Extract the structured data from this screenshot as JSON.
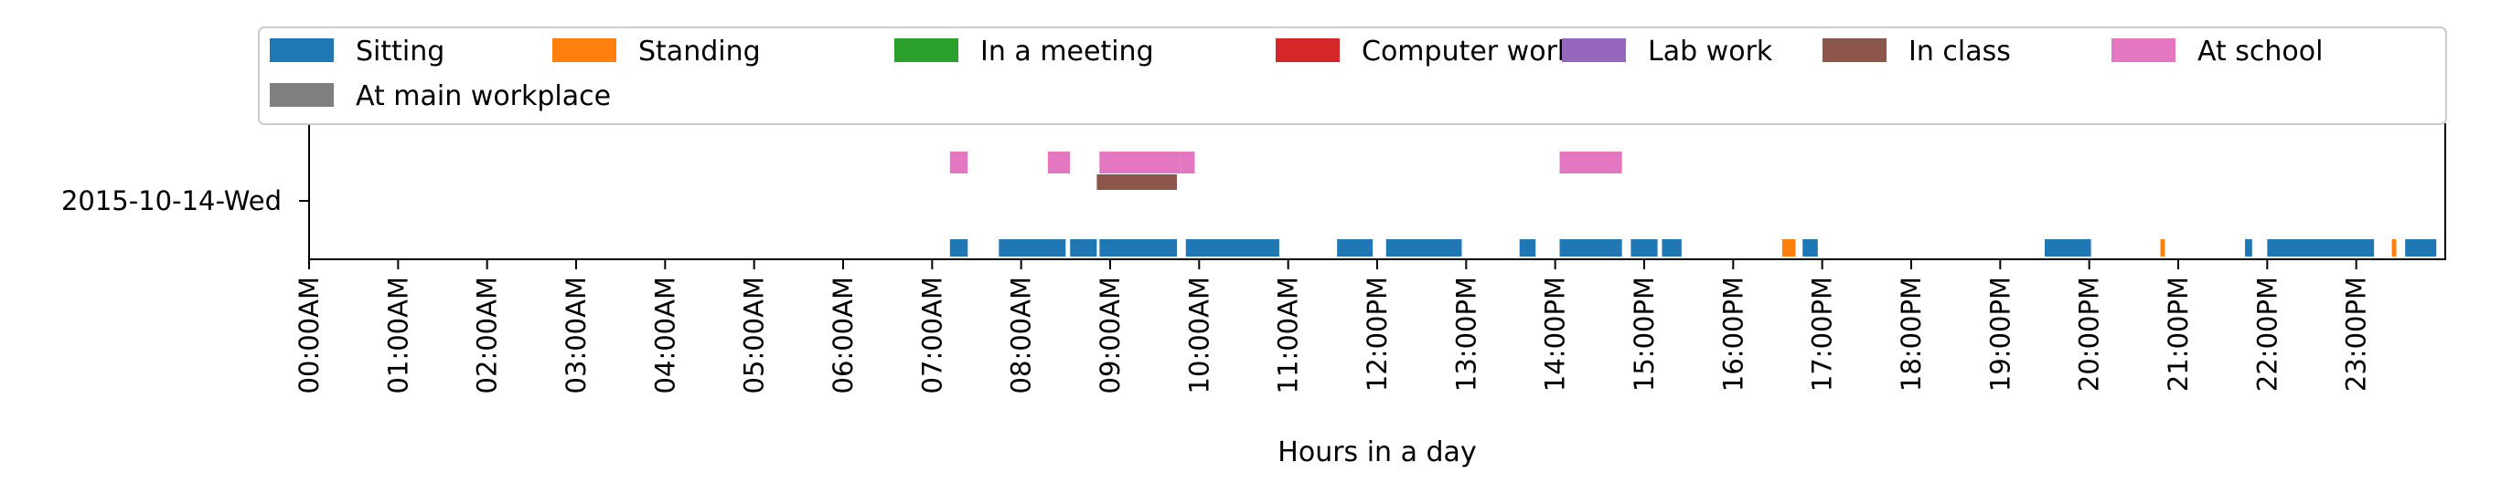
{
  "chart_data": {
    "type": "timeline",
    "xlabel": "Hours in a day",
    "xlim": [
      0,
      24
    ],
    "x_ticks": [
      "00:00AM",
      "01:00AM",
      "02:00AM",
      "03:00AM",
      "04:00AM",
      "05:00AM",
      "06:00AM",
      "07:00AM",
      "08:00AM",
      "09:00AM",
      "10:00AM",
      "11:00AM",
      "12:00PM",
      "13:00PM",
      "14:00PM",
      "15:00PM",
      "16:00PM",
      "17:00PM",
      "18:00PM",
      "19:00PM",
      "20:00PM",
      "21:00PM",
      "22:00PM",
      "23:00PM"
    ],
    "y_label": "2015-10-14-Wed",
    "legend": {
      "placement": "top",
      "entries": [
        {
          "name": "Sitting",
          "color": "#1f77b4"
        },
        {
          "name": "Standing",
          "color": "#ff7f0e"
        },
        {
          "name": "In a meeting",
          "color": "#2ca02c"
        },
        {
          "name": "Computer work",
          "color": "#d62728"
        },
        {
          "name": "Lab work",
          "color": "#9467bd"
        },
        {
          "name": "In class",
          "color": "#8c564b"
        },
        {
          "name": "At school",
          "color": "#e377c2"
        },
        {
          "name": "At main workplace",
          "color": "#7f7f7f"
        }
      ]
    },
    "series": [
      {
        "name": "Sitting",
        "color": "#1f77b4",
        "row": 0,
        "segments": [
          [
            7.2,
            7.4
          ],
          [
            7.75,
            8.5
          ],
          [
            8.55,
            8.85
          ],
          [
            8.88,
            9.75
          ],
          [
            9.85,
            10.9
          ],
          [
            11.55,
            11.95
          ],
          [
            12.1,
            12.95
          ],
          [
            13.6,
            13.78
          ],
          [
            14.05,
            14.75
          ],
          [
            14.85,
            15.15
          ],
          [
            15.2,
            15.42
          ],
          [
            16.78,
            16.95
          ],
          [
            19.5,
            20.02
          ],
          [
            21.75,
            21.83
          ],
          [
            22.0,
            23.2
          ],
          [
            23.55,
            23.9
          ]
        ]
      },
      {
        "name": "Standing",
        "color": "#ff7f0e",
        "row": 0,
        "segments": [
          [
            16.55,
            16.7
          ],
          [
            20.8,
            20.85
          ],
          [
            23.4,
            23.45
          ]
        ]
      },
      {
        "name": "In class",
        "color": "#8c564b",
        "row": 1,
        "segments": [
          [
            8.85,
            9.75
          ]
        ]
      },
      {
        "name": "At school",
        "color": "#e377c2",
        "row": 2,
        "segments": [
          [
            7.2,
            7.4
          ],
          [
            8.3,
            8.55
          ],
          [
            8.88,
            9.8
          ],
          [
            9.8,
            9.95
          ],
          [
            14.05,
            14.75
          ]
        ]
      }
    ]
  }
}
